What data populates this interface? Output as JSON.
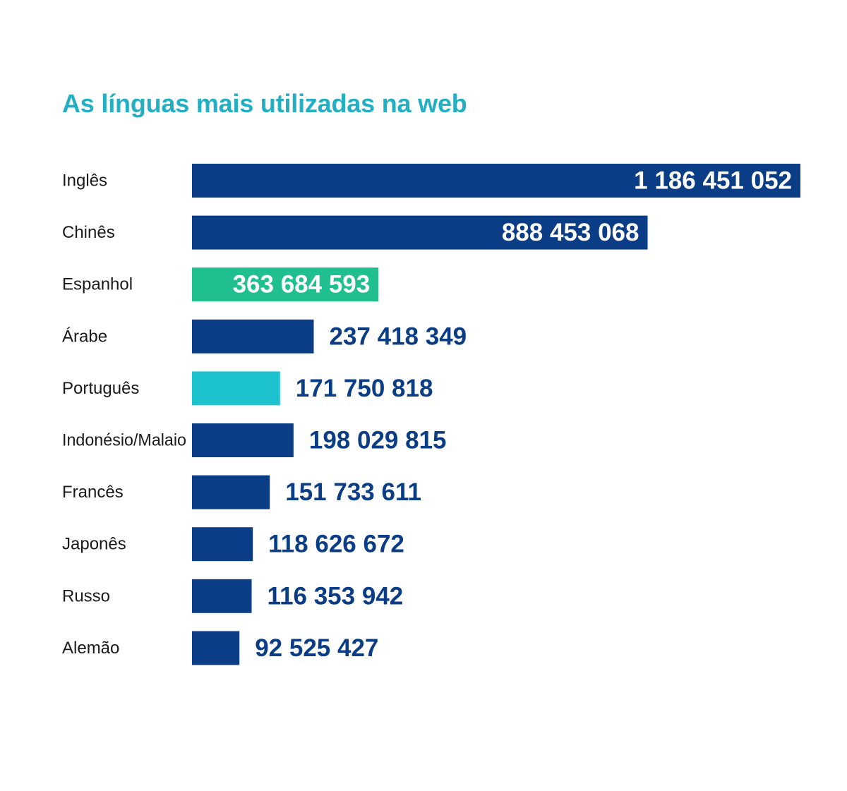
{
  "chart_data": {
    "type": "bar",
    "orientation": "horizontal",
    "title": "As línguas mais utilizadas na web",
    "categories": [
      "Inglês",
      "Chinês",
      "Espanhol",
      "Árabe",
      "Português",
      "Indonésio/Malaio",
      "Francês",
      "Japonês",
      "Russo",
      "Alemão"
    ],
    "values": [
      1186451052,
      888453068,
      363684593,
      237418349,
      171750818,
      198029815,
      151733611,
      118626672,
      116353942,
      92525427
    ],
    "value_labels": [
      "1 186 451 052",
      "888 453 068",
      "363 684 593",
      "237 418 349",
      "171 750 818",
      "198 029 815",
      "151 733 611",
      "118 626 672",
      "116 353 942",
      "92 525 427"
    ],
    "bar_colors": [
      "#0b3d86",
      "#0b3d86",
      "#1fbf8f",
      "#0b3d86",
      "#1cc3cf",
      "#0b3d86",
      "#0b3d86",
      "#0b3d86",
      "#0b3d86",
      "#0b3d86"
    ],
    "label_inside_bar": [
      true,
      true,
      true,
      false,
      false,
      false,
      false,
      false,
      false,
      false
    ],
    "xlim": [
      0,
      1186451052
    ],
    "grid": false,
    "legend": "none"
  },
  "colors": {
    "title": "#22afc4",
    "bar_default": "#0b3d86",
    "value_outside": "#0b3d86",
    "value_inside": "#ffffff",
    "category_text": "#1a1a1a"
  }
}
